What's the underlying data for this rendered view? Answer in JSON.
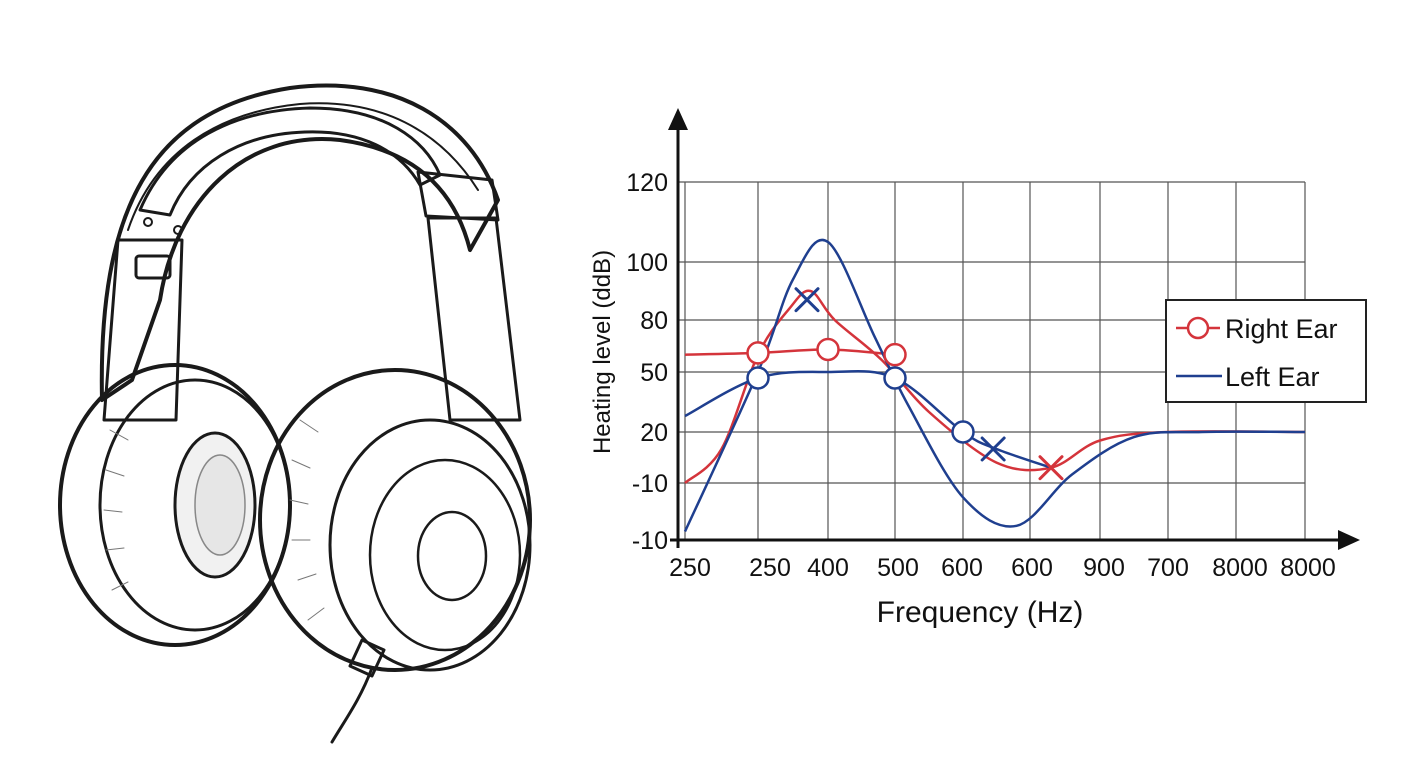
{
  "chart_data": {
    "type": "line",
    "title": "",
    "xlabel": "Frequency (Hz)",
    "ylabel": "Heating level (ddB)",
    "x_tick_labels": [
      "250",
      "250",
      "400",
      "500",
      "600",
      "600",
      "900",
      "700",
      "8000",
      "8000"
    ],
    "y_tick_labels": [
      "120",
      "100",
      "80",
      "50",
      "20",
      "-10",
      "-10"
    ],
    "grid": true,
    "legend_position": "right",
    "legend": [
      {
        "label": "Right Ear",
        "marker": "circle",
        "color": "#d4343b"
      },
      {
        "label": "Left Ear",
        "marker": "none",
        "color": "#1f3f8f"
      }
    ],
    "series": [
      {
        "name": "Right Ear",
        "color": "#d4343b",
        "curve": [
          {
            "x": 0,
            "y": -10
          },
          {
            "x": 0.5,
            "y": 10
          },
          {
            "x": 1,
            "y": 60
          },
          {
            "x": 1.45,
            "y": 84
          },
          {
            "x": 1.75,
            "y": 90
          },
          {
            "x": 2.1,
            "y": 80
          },
          {
            "x": 2.8,
            "y": 57
          },
          {
            "x": 3.5,
            "y": 30
          },
          {
            "x": 4.5,
            "y": 2
          },
          {
            "x": 5.3,
            "y": -1
          },
          {
            "x": 6,
            "y": 15
          },
          {
            "x": 7,
            "y": 20
          },
          {
            "x": 9,
            "y": 20
          }
        ],
        "flat_line": [
          {
            "x": 0,
            "y": 60
          },
          {
            "x": 1,
            "y": 61
          },
          {
            "x": 2,
            "y": 63
          },
          {
            "x": 3,
            "y": 60
          }
        ],
        "circle_markers": [
          {
            "x": 1,
            "y": 61
          },
          {
            "x": 2,
            "y": 63
          },
          {
            "x": 3,
            "y": 60
          }
        ],
        "x_markers": [
          {
            "x": 5.3,
            "y": -1
          }
        ]
      },
      {
        "name": "Left Ear",
        "color": "#1f3f8f",
        "curve": [
          {
            "x": 0,
            "y": -27
          },
          {
            "x": 1,
            "y": 50
          },
          {
            "x": 1.5,
            "y": 94
          },
          {
            "x": 2,
            "y": 105
          },
          {
            "x": 2.7,
            "y": 70
          },
          {
            "x": 3.2,
            "y": 33
          },
          {
            "x": 4,
            "y": -15
          },
          {
            "x": 4.8,
            "y": -25
          },
          {
            "x": 5.6,
            "y": -5
          },
          {
            "x": 6.5,
            "y": 17
          },
          {
            "x": 7.5,
            "y": 20
          },
          {
            "x": 9,
            "y": 20
          }
        ],
        "flat_line": [
          {
            "x": 0,
            "y": 28
          },
          {
            "x": 1,
            "y": 47
          },
          {
            "x": 2,
            "y": 50
          },
          {
            "x": 3,
            "y": 47
          },
          {
            "x": 4,
            "y": 20
          },
          {
            "x": 4.5,
            "y": 10
          },
          {
            "x": 5.3,
            "y": -1
          }
        ],
        "circle_markers": [
          {
            "x": 1,
            "y": 47
          },
          {
            "x": 3,
            "y": 47
          },
          {
            "x": 4,
            "y": 20
          }
        ],
        "x_markers": [
          {
            "x": 1.7,
            "y": 87
          },
          {
            "x": 4.45,
            "y": 10
          }
        ]
      }
    ]
  }
}
